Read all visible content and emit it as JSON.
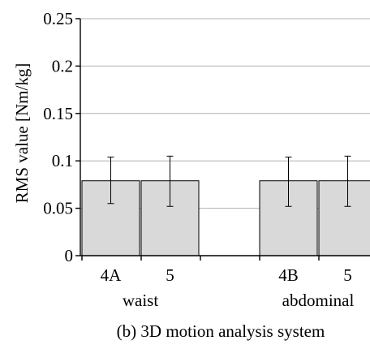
{
  "chart_data": {
    "type": "bar",
    "title": "",
    "caption": "(b) 3D motion analysis system",
    "ylabel": "RMS value [Nm/kg]",
    "xlabel": "",
    "ylim": [
      0,
      0.25
    ],
    "yticks": [
      "0",
      "0.05",
      "0.1",
      "0.15",
      "0.2",
      "0.25"
    ],
    "grid": true,
    "groups": [
      {
        "label": "waist",
        "bars": [
          {
            "category": "4A",
            "value": 0.079,
            "err_low": 0.055,
            "err_high": 0.104
          },
          {
            "category": "5",
            "value": 0.079,
            "err_low": 0.052,
            "err_high": 0.105
          }
        ]
      },
      {
        "label": "abdominal",
        "bars": [
          {
            "category": "4B",
            "value": 0.079,
            "err_low": 0.052,
            "err_high": 0.104
          },
          {
            "category": "5",
            "value": 0.079,
            "err_low": 0.052,
            "err_high": 0.105
          }
        ]
      }
    ],
    "colors": {
      "bar_fill": "#d9d9d9",
      "bar_stroke": "#000000",
      "grid": "#b0b0b0"
    }
  }
}
